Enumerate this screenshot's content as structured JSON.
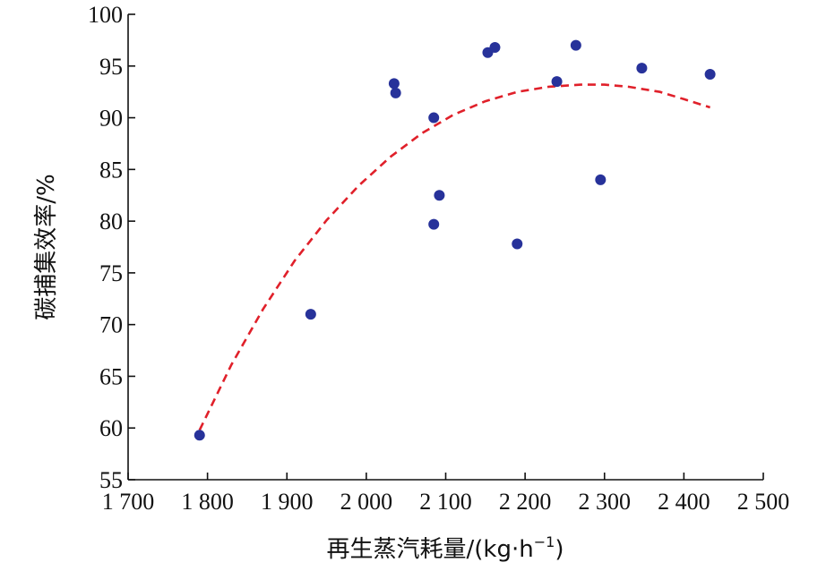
{
  "chart_data": {
    "type": "scatter",
    "xlabel": "再生蒸汽耗量/(kg·h",
    "xlabel_sup": "−1",
    "xlabel_close": ")",
    "ylabel": "碳捕集效率/%",
    "xlim": [
      1700,
      2500
    ],
    "ylim": [
      55,
      100
    ],
    "x_ticks": [
      1700,
      1800,
      1900,
      2000,
      2100,
      2200,
      2300,
      2400,
      2500
    ],
    "x_tick_labels": [
      "1 700",
      "1 800",
      "1 900",
      "2 000",
      "2 100",
      "2 200",
      "2 300",
      "2 400",
      "2 500"
    ],
    "y_ticks": [
      55,
      60,
      65,
      70,
      75,
      80,
      85,
      90,
      95,
      100
    ],
    "y_tick_labels": [
      "55",
      "60",
      "65",
      "70",
      "75",
      "80",
      "85",
      "90",
      "95",
      "100"
    ],
    "grid": false,
    "colors": {
      "points": "#27329a",
      "trend": "#e0202a"
    },
    "series": [
      {
        "type": "scatter",
        "x": [
          1790,
          1930,
          2035,
          2037,
          2085,
          2085,
          2092,
          2153,
          2162,
          2190,
          2240,
          2264,
          2295,
          2347,
          2433
        ],
        "y": [
          59.3,
          71.0,
          93.3,
          92.4,
          90.0,
          79.7,
          82.5,
          96.3,
          96.8,
          77.8,
          93.5,
          97.0,
          84.0,
          94.8,
          94.2
        ]
      },
      {
        "type": "line",
        "style": "dashed",
        "x": [
          1790,
          1830,
          1870,
          1910,
          1950,
          1990,
          2030,
          2070,
          2110,
          2150,
          2190,
          2230,
          2270,
          2300,
          2330,
          2370,
          2400,
          2433
        ],
        "y": [
          59.8,
          66.1,
          71.5,
          76.2,
          80.1,
          83.4,
          86.2,
          88.5,
          90.3,
          91.6,
          92.5,
          93.0,
          93.2,
          93.2,
          93.0,
          92.5,
          91.8,
          91.0
        ]
      }
    ]
  }
}
